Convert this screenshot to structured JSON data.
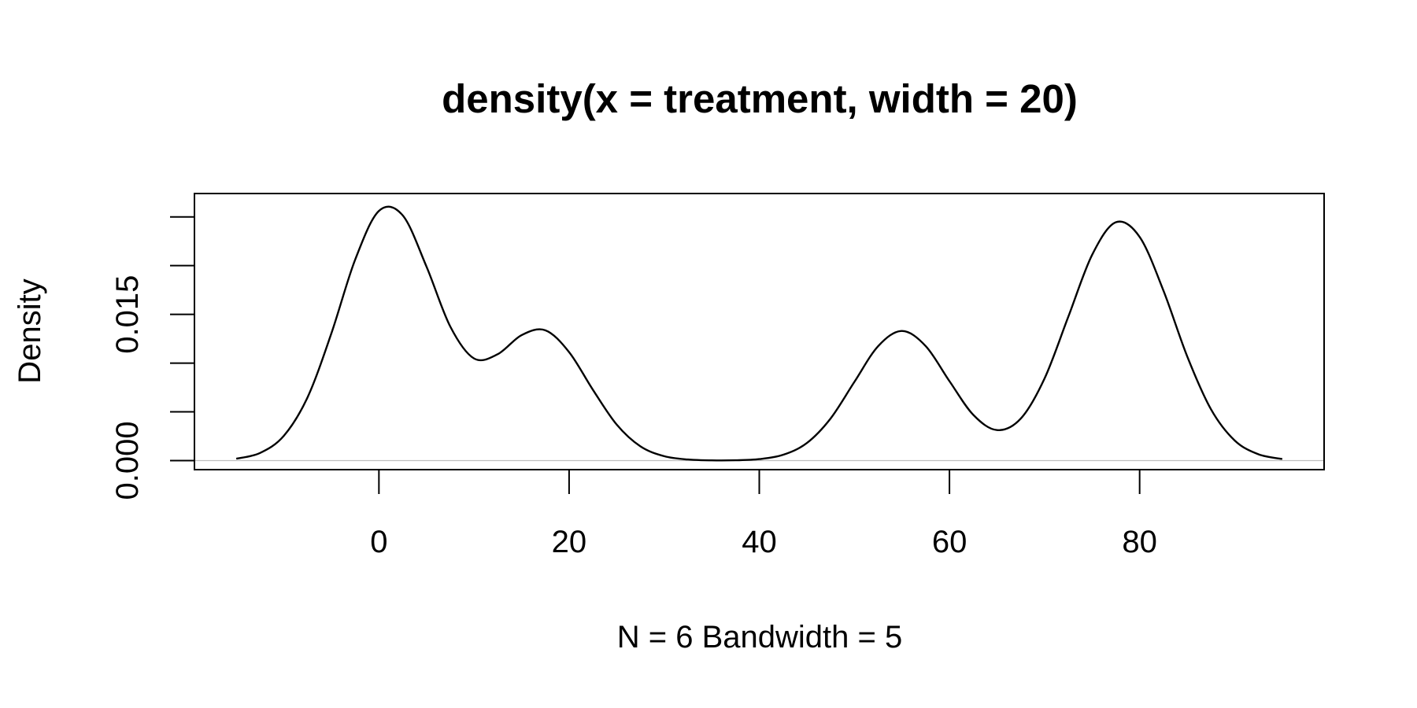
{
  "chart_data": {
    "type": "line",
    "title": "density(x = treatment, width = 20)",
    "x_label": "N = 6   Bandwidth = 5",
    "y_label": "Density",
    "x": [
      -15,
      -12.5,
      -10,
      -7.5,
      -5,
      -2.5,
      0,
      2.5,
      5,
      7.5,
      10,
      12.5,
      15,
      17.5,
      20,
      22.5,
      25,
      27.5,
      30,
      32.5,
      35,
      37.5,
      40,
      42.5,
      45,
      47.5,
      50,
      52.5,
      55,
      57.5,
      60,
      62.5,
      65,
      67.5,
      70,
      72.5,
      75,
      77.5,
      80,
      82.5,
      85,
      87.5,
      90,
      92.5,
      95
    ],
    "series": [
      {
        "color": "#000000",
        "values": [
          0.00019,
          0.00078,
          0.00254,
          0.0065,
          0.01305,
          0.02061,
          0.02561,
          0.02516,
          0.01991,
          0.01376,
          0.01048,
          0.01092,
          0.01287,
          0.01337,
          0.01113,
          0.00727,
          0.0037,
          0.00146,
          0.00045,
          0.00011,
          2e-05,
          3e-05,
          0.00015,
          0.00059,
          0.0018,
          0.00432,
          0.00807,
          0.01174,
          0.0133,
          0.01175,
          0.00815,
          0.0047,
          0.00313,
          0.00431,
          0.00842,
          0.01476,
          0.0211,
          0.02445,
          0.02295,
          0.01745,
          0.0107,
          0.00527,
          0.00206,
          0.00064,
          0.00016
        ]
      }
    ],
    "xlim": [
      -19.4,
      99.4
    ],
    "ylim": [
      -0.00093,
      0.0274
    ],
    "xticks": [
      0,
      20,
      40,
      60,
      80
    ],
    "yticks": [
      0,
      0.005,
      0.01,
      0.015,
      0.02,
      0.025
    ],
    "ytick_labels": [
      {
        "value": 0,
        "label": "0.000"
      },
      {
        "value": 0.015,
        "label": "0.015"
      }
    ],
    "zero_line_color": "#bebebe"
  }
}
